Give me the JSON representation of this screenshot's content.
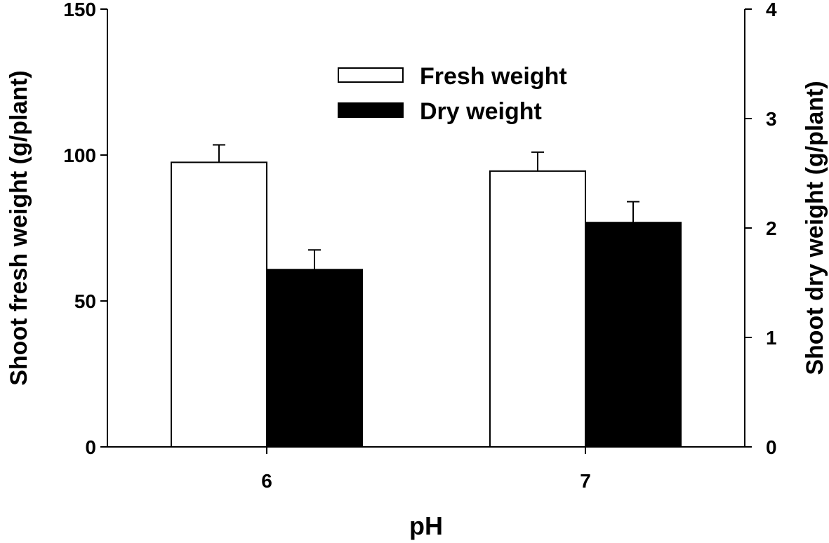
{
  "chart_data": {
    "type": "bar",
    "title": "",
    "xlabel": "pH",
    "ylabel": "Shoot fresh weight (g/plant)",
    "y2label": "Shoot dry weight (g/plant)",
    "categories": [
      "6",
      "7"
    ],
    "ylim": [
      0,
      150
    ],
    "y2lim": [
      0,
      4
    ],
    "yticks": [
      "0",
      "50",
      "100",
      "150"
    ],
    "y2ticks": [
      "0",
      "1",
      "2",
      "3",
      "4"
    ],
    "grid": false,
    "legend_position": "top-center",
    "series": [
      {
        "name": "Fresh weight",
        "axis": "left",
        "color": "#ffffff",
        "values": [
          97.5,
          94.5
        ],
        "errors": [
          6.0,
          6.5
        ]
      },
      {
        "name": "Dry weight",
        "axis": "right",
        "color": "#000000",
        "values": [
          1.62,
          2.05
        ],
        "errors": [
          0.18,
          0.19
        ]
      }
    ]
  }
}
